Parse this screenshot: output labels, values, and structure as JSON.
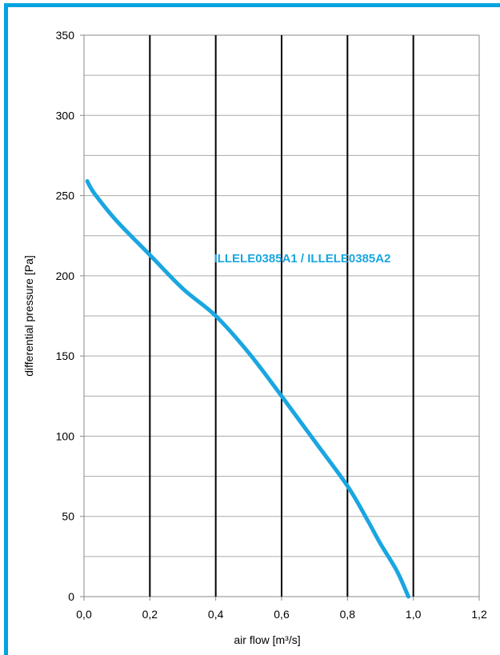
{
  "colors": {
    "frame": "#00a3e0",
    "series": "#1aa6e0",
    "major_grid": "#000000",
    "minor_grid": "#aaaaaa",
    "plot_border": "#888888"
  },
  "chart_data": {
    "type": "line",
    "title": "",
    "xlabel": "air flow [m³/s]",
    "ylabel": "differential pressure [Pa]",
    "xlim": [
      0,
      1.2
    ],
    "ylim": [
      0,
      350
    ],
    "x_ticks": [
      0,
      0.2,
      0.4,
      0.6,
      0.8,
      1.0,
      1.2
    ],
    "x_tick_labels": [
      "0,0",
      "0,2",
      "0,4",
      "0,6",
      "0,8",
      "1,0",
      "1,2"
    ],
    "y_ticks": [
      0,
      50,
      100,
      150,
      200,
      250,
      300,
      350
    ],
    "y_tick_labels": [
      "0",
      "50",
      "100",
      "150",
      "200",
      "250",
      "300",
      "350"
    ],
    "grid": true,
    "series": [
      {
        "name": "ILLELE0385A1 / ILLELE0385A2",
        "x": [
          0.01,
          0.02,
          0.04,
          0.1,
          0.2,
          0.3,
          0.4,
          0.5,
          0.6,
          0.7,
          0.8,
          0.86,
          0.9,
          0.95,
          0.985
        ],
        "y": [
          259,
          255,
          249,
          234,
          213,
          192,
          175,
          152,
          125,
          97,
          69,
          48,
          33,
          16,
          0
        ]
      }
    ]
  }
}
